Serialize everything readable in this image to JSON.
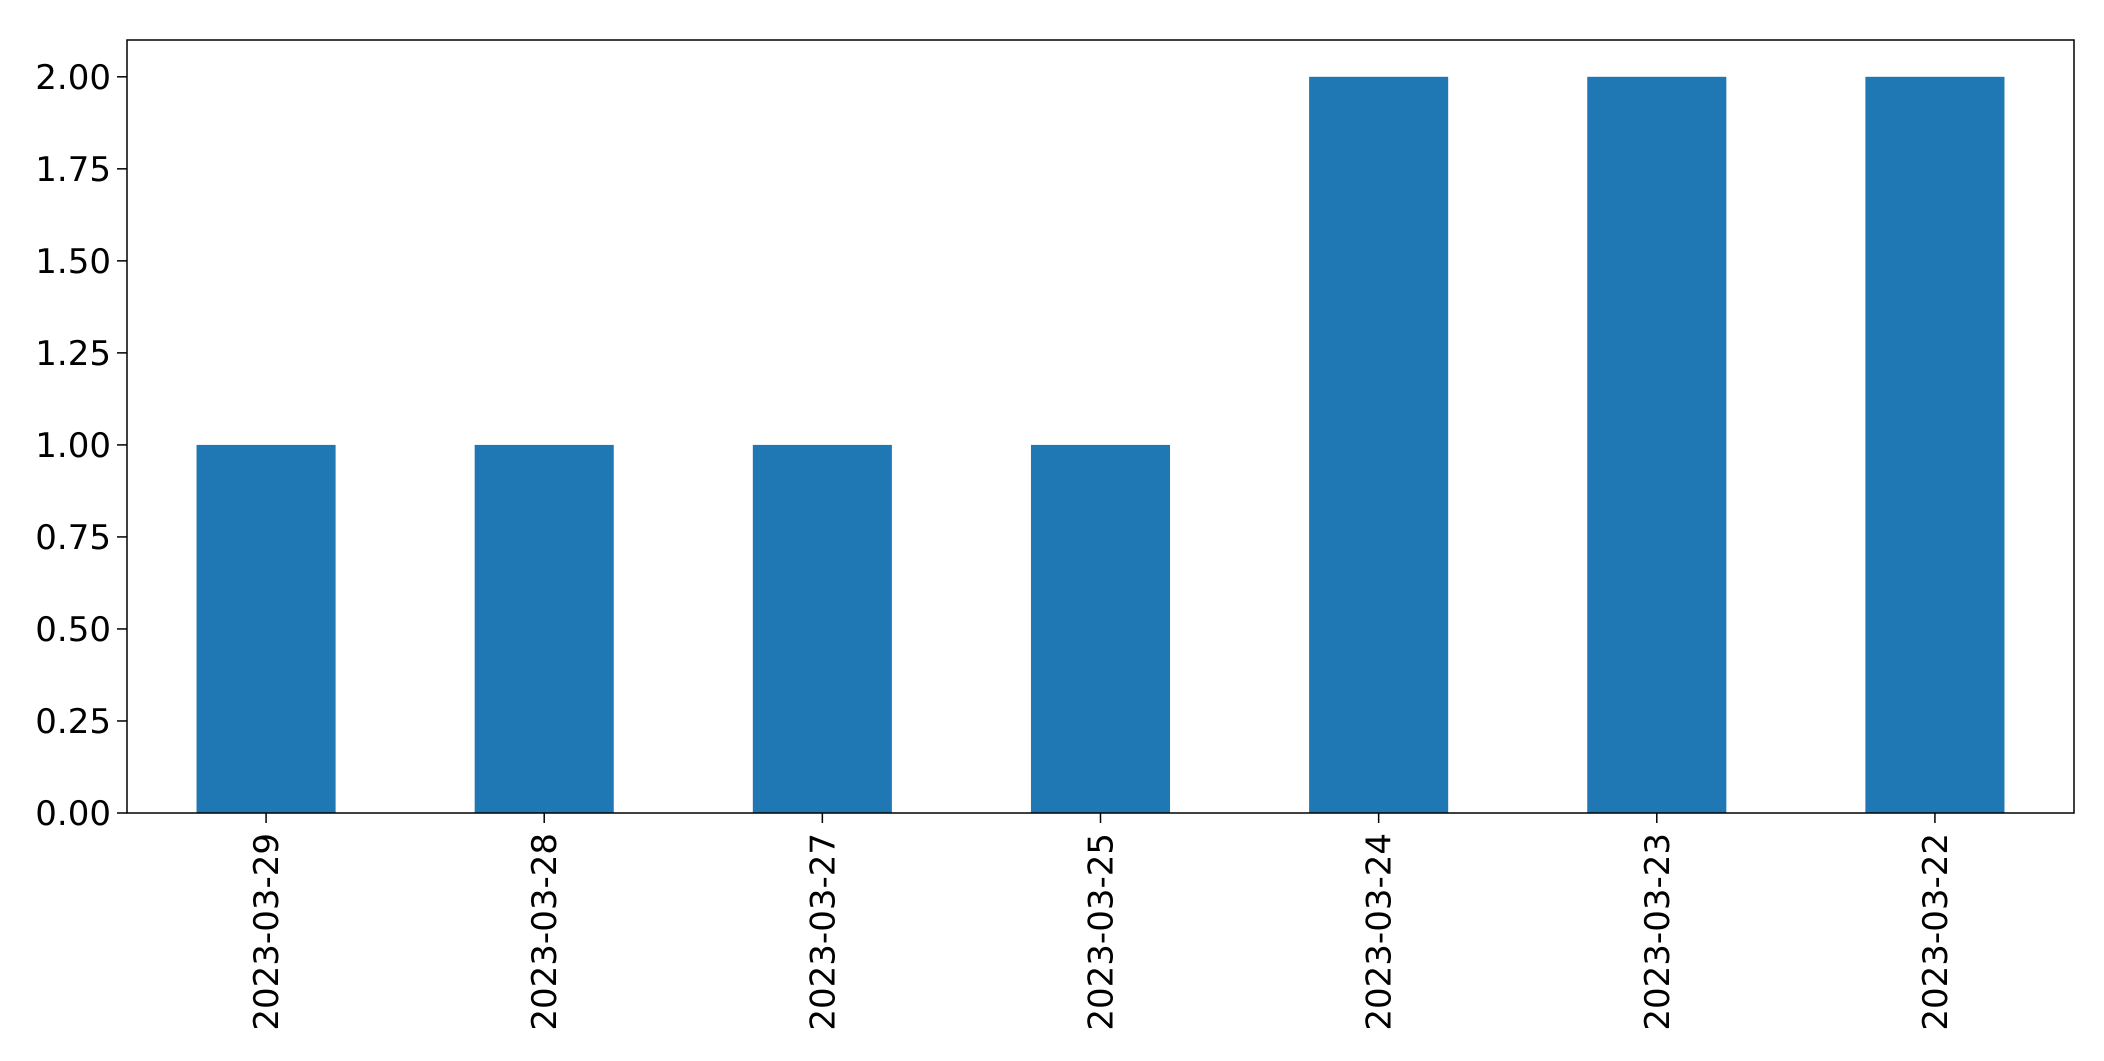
{
  "chart_data": {
    "type": "bar",
    "title": "",
    "xlabel": "",
    "ylabel": "",
    "categories": [
      "2023-03-29",
      "2023-03-28",
      "2023-03-27",
      "2023-03-25",
      "2023-03-24",
      "2023-03-23",
      "2023-03-22"
    ],
    "values": [
      1,
      1,
      1,
      1,
      2,
      2,
      2
    ],
    "ylim": [
      0,
      2.1
    ],
    "yticks": [
      "0.00",
      "0.25",
      "0.50",
      "0.75",
      "1.00",
      "1.25",
      "1.50",
      "1.75",
      "2.00"
    ],
    "ytick_values": [
      0,
      0.25,
      0.5,
      0.75,
      1.0,
      1.25,
      1.5,
      1.75,
      2.0
    ],
    "grid": false,
    "legend": "none",
    "bar_color": "#1f77b4",
    "x_tick_rotation": "vertical"
  }
}
